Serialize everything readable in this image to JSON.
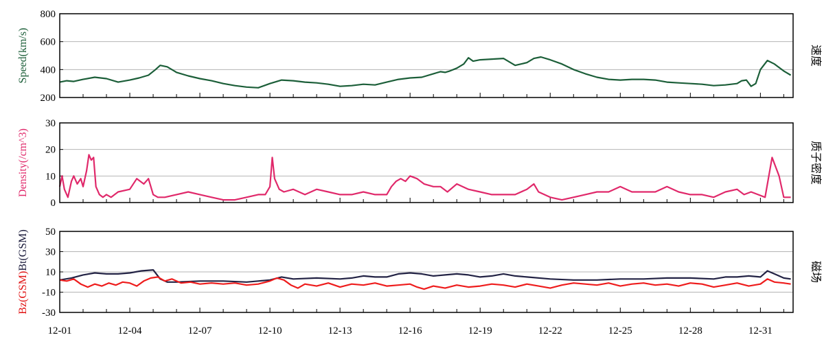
{
  "chart_data": [
    {
      "type": "line",
      "ylabel": "Speed(km/s)",
      "ylabel_color": "#1b5e38",
      "right_label": "速度",
      "ylim": [
        200,
        800
      ],
      "yticks": [
        "800",
        "600",
        "400",
        "200"
      ],
      "grid": true,
      "series": [
        {
          "color": "#1b5e38",
          "x": [
            0,
            0.3,
            0.6,
            1,
            1.5,
            2,
            2.5,
            3,
            3.4,
            3.8,
            4.1,
            4.3,
            4.6,
            5,
            5.5,
            6,
            6.5,
            7,
            7.5,
            8,
            8.5,
            9,
            9.5,
            10,
            10.5,
            11,
            11.5,
            12,
            12.5,
            13,
            13.5,
            14,
            14.5,
            15,
            15.5,
            16,
            16.3,
            16.5,
            16.7,
            17,
            17.3,
            17.5,
            17.7,
            18,
            18.5,
            19,
            19.5,
            20,
            20.3,
            20.6,
            21,
            21.5,
            22,
            22.5,
            23,
            23.5,
            24,
            24.5,
            25,
            25.5,
            26,
            26.5,
            27,
            27.5,
            28,
            28.5,
            29,
            29.2,
            29.4,
            29.6,
            29.8,
            30,
            30.3,
            30.6,
            31,
            31.3
          ],
          "y": [
            310,
            320,
            315,
            330,
            345,
            335,
            310,
            325,
            340,
            360,
            400,
            430,
            420,
            380,
            355,
            335,
            320,
            300,
            285,
            275,
            270,
            300,
            325,
            320,
            310,
            305,
            295,
            280,
            285,
            295,
            290,
            310,
            330,
            340,
            345,
            370,
            385,
            380,
            390,
            410,
            440,
            485,
            460,
            470,
            475,
            480,
            430,
            450,
            480,
            490,
            470,
            440,
            400,
            370,
            345,
            330,
            325,
            330,
            330,
            325,
            310,
            305,
            300,
            295,
            285,
            290,
            300,
            320,
            325,
            280,
            300,
            400,
            465,
            440,
            390,
            360
          ]
        }
      ]
    },
    {
      "type": "line",
      "ylabel": "Density(/cm^3)",
      "ylabel_color": "#e0286a",
      "right_label": "质子密度",
      "ylim": [
        0,
        30
      ],
      "yticks": [
        "30",
        "20",
        "10",
        "0"
      ],
      "grid": true,
      "series": [
        {
          "color": "#e0286a",
          "x": [
            0,
            0.1,
            0.2,
            0.35,
            0.5,
            0.6,
            0.75,
            0.9,
            1.0,
            1.15,
            1.25,
            1.35,
            1.45,
            1.55,
            1.7,
            1.85,
            2.0,
            2.2,
            2.5,
            3.0,
            3.3,
            3.6,
            3.8,
            4.0,
            4.2,
            4.5,
            5.0,
            5.5,
            6.0,
            6.5,
            7.0,
            7.5,
            8.0,
            8.5,
            8.8,
            9.0,
            9.1,
            9.2,
            9.4,
            9.6,
            10.0,
            10.5,
            11.0,
            11.5,
            12.0,
            12.5,
            13.0,
            13.5,
            14.0,
            14.2,
            14.4,
            14.6,
            14.8,
            15.0,
            15.3,
            15.6,
            16.0,
            16.3,
            16.6,
            17.0,
            17.5,
            18.0,
            18.5,
            19.0,
            19.5,
            20.0,
            20.3,
            20.5,
            21.0,
            21.5,
            22.0,
            22.5,
            23.0,
            23.5,
            24.0,
            24.5,
            25.0,
            25.5,
            26.0,
            26.5,
            27.0,
            27.5,
            28.0,
            28.5,
            29.0,
            29.3,
            29.6,
            29.9,
            30.2,
            30.5,
            30.8,
            31.0,
            31.3
          ],
          "y": [
            6,
            10,
            5,
            2,
            8,
            10,
            7,
            9,
            6,
            12,
            18,
            16,
            17,
            6,
            3,
            2,
            3,
            2,
            4,
            5,
            9,
            7,
            9,
            3,
            2,
            2,
            3,
            4,
            3,
            2,
            1,
            1,
            2,
            3,
            3,
            6,
            17,
            9,
            5,
            4,
            5,
            3,
            5,
            4,
            3,
            3,
            4,
            3,
            3,
            6,
            8,
            9,
            8,
            10,
            9,
            7,
            6,
            6,
            4,
            7,
            5,
            4,
            3,
            3,
            3,
            5,
            7,
            4,
            2,
            1,
            2,
            3,
            4,
            4,
            6,
            4,
            4,
            4,
            6,
            4,
            3,
            3,
            2,
            4,
            5,
            3,
            4,
            3,
            2,
            17,
            10,
            2,
            2
          ]
        }
      ]
    },
    {
      "type": "line",
      "ylabel_parts": [
        {
          "text": "Bz(GSM)",
          "color": "#e01010"
        },
        {
          "text": "Bt(GSM)",
          "color": "#1a1a3a"
        }
      ],
      "right_label": "磁场",
      "ylim": [
        -30,
        50
      ],
      "yticks": [
        "50",
        "30",
        "10",
        "-10",
        "-30"
      ],
      "grid": true,
      "series": [
        {
          "color": "#222244",
          "x": [
            0,
            0.5,
            1,
            1.5,
            2,
            2.5,
            3,
            3.5,
            4,
            4.3,
            4.6,
            5,
            6,
            7,
            8,
            8.5,
            9,
            9.5,
            10,
            11,
            12,
            12.5,
            13,
            13.5,
            14,
            14.5,
            15,
            15.5,
            16,
            16.5,
            17,
            17.5,
            18,
            18.5,
            19,
            19.5,
            20,
            21,
            22,
            23,
            24,
            25,
            26,
            27,
            28,
            28.5,
            29,
            29.5,
            30,
            30.3,
            30.6,
            31,
            31.3
          ],
          "y": [
            2,
            4,
            7,
            9,
            8,
            8,
            9,
            11,
            12,
            3,
            0,
            0,
            1,
            1,
            0,
            1,
            2,
            5,
            3,
            4,
            3,
            4,
            6,
            5,
            5,
            8,
            9,
            8,
            6,
            7,
            8,
            7,
            5,
            6,
            8,
            6,
            5,
            3,
            2,
            2,
            3,
            3,
            4,
            4,
            3,
            5,
            5,
            6,
            5,
            11,
            8,
            4,
            3
          ]
        },
        {
          "color": "#ee1c1c",
          "x": [
            0,
            0.3,
            0.6,
            0.9,
            1.2,
            1.5,
            1.8,
            2.1,
            2.4,
            2.7,
            3.0,
            3.3,
            3.6,
            3.9,
            4.2,
            4.5,
            4.8,
            5.2,
            5.6,
            6.0,
            6.5,
            7.0,
            7.5,
            8.0,
            8.5,
            9.0,
            9.3,
            9.6,
            9.9,
            10.2,
            10.5,
            11.0,
            11.5,
            12.0,
            12.5,
            13.0,
            13.5,
            14.0,
            14.5,
            15.0,
            15.3,
            15.6,
            16.0,
            16.5,
            17.0,
            17.5,
            18.0,
            18.5,
            19.0,
            19.5,
            20.0,
            20.5,
            21.0,
            21.5,
            22.0,
            22.5,
            23.0,
            23.5,
            24.0,
            24.5,
            25.0,
            25.5,
            26.0,
            26.5,
            27.0,
            27.5,
            28.0,
            28.5,
            29.0,
            29.5,
            30.0,
            30.3,
            30.6,
            31.0,
            31.3
          ],
          "y": [
            2,
            1,
            3,
            -2,
            -5,
            -2,
            -4,
            -1,
            -3,
            0,
            -1,
            -4,
            1,
            4,
            5,
            1,
            3,
            -1,
            0,
            -2,
            -1,
            -2,
            -1,
            -3,
            -2,
            1,
            4,
            2,
            -3,
            -6,
            -2,
            -4,
            -1,
            -5,
            -2,
            -3,
            -1,
            -4,
            -3,
            -2,
            -5,
            -7,
            -4,
            -6,
            -3,
            -5,
            -4,
            -2,
            -3,
            -5,
            -2,
            -4,
            -6,
            -3,
            -1,
            -2,
            -3,
            -1,
            -4,
            -2,
            -1,
            -3,
            -2,
            -4,
            -1,
            -2,
            -5,
            -3,
            -1,
            -4,
            -2,
            3,
            0,
            -1,
            -2
          ]
        }
      ]
    }
  ],
  "x_axis": {
    "domain": [
      0,
      31.4
    ],
    "tick_positions": [
      0,
      3,
      6,
      9,
      12,
      15,
      18,
      21,
      24,
      27,
      30
    ],
    "tick_labels": [
      "12-01",
      "12-04",
      "12-07",
      "12-10",
      "12-13",
      "12-16",
      "12-19",
      "12-22",
      "12-25",
      "12-28",
      "12-31"
    ]
  }
}
